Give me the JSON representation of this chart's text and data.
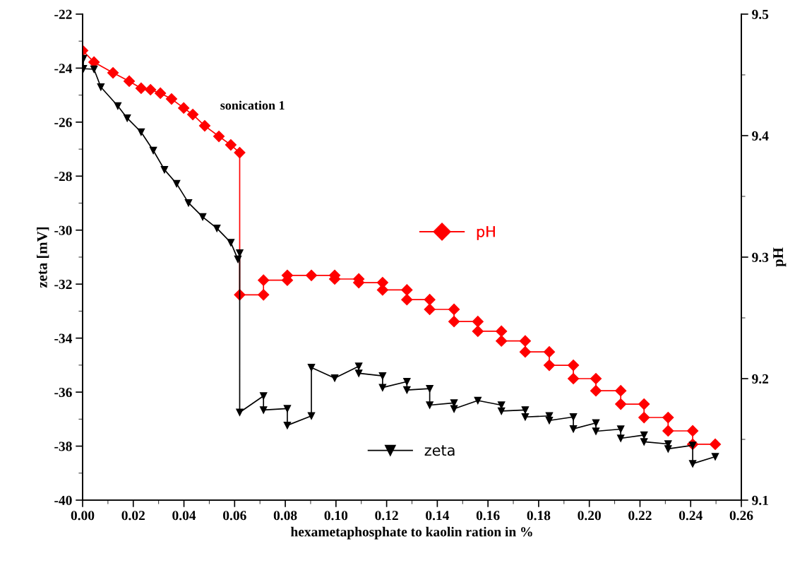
{
  "chart_data": {
    "type": "line",
    "xlabel": "hexametaphosphate to kaolin ration in %",
    "ylabel": "zeta [mV]",
    "y2label": "pH",
    "xlim": [
      0,
      0.26
    ],
    "xticks": [
      {
        "value": 0,
        "label": "0.00"
      },
      {
        "value": 0.02,
        "label": "0.02"
      },
      {
        "value": 0.04,
        "label": "0.04"
      },
      {
        "value": 0.06,
        "label": "0.06"
      },
      {
        "value": 0.08,
        "label": "0.08"
      },
      {
        "value": 0.1,
        "label": "0.10"
      },
      {
        "value": 0.12,
        "label": "0.12"
      },
      {
        "value": 0.14,
        "label": "0.14"
      },
      {
        "value": 0.16,
        "label": "0.16"
      },
      {
        "value": 0.18,
        "label": "0.18"
      },
      {
        "value": 0.2,
        "label": "0.20"
      },
      {
        "value": 0.22,
        "label": "0.22"
      },
      {
        "value": 0.24,
        "label": "0.24"
      },
      {
        "value": 0.26,
        "label": "0.26"
      }
    ],
    "ylim": [
      -40,
      -22
    ],
    "yticks": [
      -40,
      -38,
      -36,
      -34,
      -32,
      -30,
      -28,
      -26,
      -24,
      -22
    ],
    "y2lim": [
      9.1,
      9.5
    ],
    "y2ticks": [
      9.1,
      9.2,
      9.3,
      9.4,
      9.5
    ],
    "grid": false,
    "legend": "center",
    "line_style": "solid",
    "annotations": [
      "sonication 1"
    ],
    "series": [
      {
        "name": "zeta",
        "color": "#000000",
        "marker": "triangle",
        "x": [
          0.0003,
          0.0003,
          0.0045,
          0.0072,
          0.0139,
          0.0176,
          0.0231,
          0.0279,
          0.0323,
          0.0371,
          0.0418,
          0.0474,
          0.053,
          0.0585,
          0.0613,
          0.062,
          0.062,
          0.0714,
          0.0714,
          0.0808,
          0.0808,
          0.0903,
          0.0903,
          0.0995,
          0.109,
          0.109,
          0.1184,
          0.1184,
          0.128,
          0.128,
          0.137,
          0.137,
          0.1466,
          0.1466,
          0.156,
          0.1653,
          0.1653,
          0.1747,
          0.1747,
          0.1842,
          0.1842,
          0.1937,
          0.1937,
          0.2026,
          0.2026,
          0.2124,
          0.2124,
          0.2216,
          0.2216,
          0.2311,
          0.2311,
          0.2408,
          0.2408,
          0.2497
        ],
        "values": [
          -23.65,
          -24.02,
          -24.04,
          -24.7,
          -25.4,
          -25.85,
          -26.37,
          -27.05,
          -27.76,
          -28.28,
          -28.99,
          -29.51,
          -29.93,
          -30.46,
          -31.08,
          -30.85,
          -36.75,
          -36.14,
          -36.66,
          -36.61,
          -37.23,
          -36.88,
          -35.09,
          -35.48,
          -35.04,
          -35.3,
          -35.4,
          -35.83,
          -35.61,
          -35.92,
          -35.87,
          -36.48,
          -36.4,
          -36.62,
          -36.31,
          -36.48,
          -36.7,
          -36.66,
          -36.92,
          -36.88,
          -37.05,
          -36.92,
          -37.36,
          -37.14,
          -37.45,
          -37.37,
          -37.71,
          -37.59,
          -37.84,
          -37.92,
          -38.1,
          -37.97,
          -38.65,
          -38.39
        ]
      },
      {
        "name": "pH",
        "color": "#ff0000",
        "marker": "diamond",
        "axis": "y2",
        "x": [
          0,
          0.0045,
          0.012,
          0.0184,
          0.0231,
          0.0268,
          0.0307,
          0.0351,
          0.0399,
          0.0435,
          0.0482,
          0.0538,
          0.0585,
          0.062,
          0.062,
          0.0714,
          0.0714,
          0.0808,
          0.0808,
          0.0903,
          0.0995,
          0.0995,
          0.109,
          0.109,
          0.1184,
          0.1184,
          0.128,
          0.128,
          0.137,
          0.137,
          0.1466,
          0.1466,
          0.156,
          0.156,
          0.1653,
          0.1653,
          0.1747,
          0.1747,
          0.1842,
          0.1842,
          0.1937,
          0.1937,
          0.2026,
          0.2026,
          0.2124,
          0.2124,
          0.2216,
          0.2216,
          0.2311,
          0.2311,
          0.2408,
          0.2408,
          0.2497
        ],
        "values": [
          9.47,
          9.4605,
          9.4517,
          9.4448,
          9.439,
          9.4378,
          9.4349,
          9.4302,
          9.4227,
          9.4174,
          9.4081,
          9.3994,
          9.3924,
          9.386,
          9.269,
          9.269,
          9.281,
          9.281,
          9.285,
          9.285,
          9.285,
          9.282,
          9.282,
          9.279,
          9.279,
          9.273,
          9.273,
          9.265,
          9.265,
          9.257,
          9.257,
          9.247,
          9.247,
          9.239,
          9.239,
          9.231,
          9.231,
          9.222,
          9.222,
          9.211,
          9.211,
          9.2,
          9.2,
          9.19,
          9.19,
          9.179,
          9.179,
          9.168,
          9.168,
          9.157,
          9.157,
          9.146,
          9.146
        ]
      }
    ]
  }
}
